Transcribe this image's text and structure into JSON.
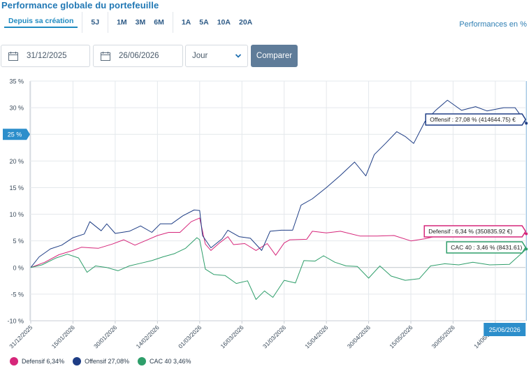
{
  "title": "Performance globale du portefeuille",
  "periods": {
    "groups": [
      [
        {
          "label": "Depuis sa création",
          "active": true
        }
      ],
      [
        {
          "label": "5J",
          "active": false
        }
      ],
      [
        {
          "label": "1M",
          "active": false
        },
        {
          "label": "3M",
          "active": false
        },
        {
          "label": "6M",
          "active": false
        }
      ],
      [
        {
          "label": "1A",
          "active": false
        },
        {
          "label": "5A",
          "active": false
        },
        {
          "label": "10A",
          "active": false
        },
        {
          "label": "20A",
          "active": false
        }
      ]
    ]
  },
  "perf_unit": "Performances en %",
  "controls": {
    "start_date": "31/12/2025",
    "end_date": "26/06/2026",
    "granularity": "Jour",
    "compare_label": "Comparer"
  },
  "chart_data": {
    "type": "line",
    "y_ticks": [
      "35 %",
      "30 %",
      "25 %",
      "20 %",
      "15 %",
      "10 %",
      "5 %",
      "0 %",
      "-5 %",
      "-10 %"
    ],
    "ylim": [
      -10,
      35
    ],
    "x_ticks": [
      "31/12/2025",
      "15/01/2026",
      "30/01/2026",
      "14/02/2026",
      "01/03/2026",
      "16/03/2026",
      "31/03/2026",
      "15/04/2026",
      "30/04/2026",
      "15/05/2026",
      "30/05/2026",
      "14/06/2026"
    ],
    "x_range": [
      "31/12/2025",
      "25/06/2026"
    ],
    "y_axis_marker": "25 %",
    "x_axis_marker": "25/06/2026",
    "crosshair_date": "25/06/2026",
    "series": [
      {
        "name": "Defensif",
        "legend_value": "6,34%",
        "color": "#d6267a",
        "tooltip": "Defensif : 6,34 % (350835.92 €)",
        "points": [
          [
            "2025-12-31",
            0
          ],
          [
            "2026-01-05",
            1
          ],
          [
            "2026-01-10",
            2.4
          ],
          [
            "2026-01-15",
            3.2
          ],
          [
            "2026-01-18",
            3.8
          ],
          [
            "2026-01-24",
            3.6
          ],
          [
            "2026-01-29",
            4.4
          ],
          [
            "2026-02-02",
            5.2
          ],
          [
            "2026-02-06",
            4.2
          ],
          [
            "2026-02-10",
            5.1
          ],
          [
            "2026-02-14",
            6
          ],
          [
            "2026-02-18",
            6.6
          ],
          [
            "2026-02-22",
            6.6
          ],
          [
            "2026-02-26",
            8.6
          ],
          [
            "2026-03-01",
            9.3
          ],
          [
            "2026-03-03",
            4.4
          ],
          [
            "2026-03-05",
            3.2
          ],
          [
            "2026-03-08",
            4.6
          ],
          [
            "2026-03-11",
            5.8
          ],
          [
            "2026-03-13",
            4.3
          ],
          [
            "2026-03-17",
            4.5
          ],
          [
            "2026-03-21",
            3.2
          ],
          [
            "2026-03-25",
            4.5
          ],
          [
            "2026-03-28",
            2.3
          ],
          [
            "2026-03-31",
            4.6
          ],
          [
            "2026-04-02",
            5.2
          ],
          [
            "2026-04-08",
            5.3
          ],
          [
            "2026-04-10",
            6.8
          ],
          [
            "2026-04-15",
            6.5
          ],
          [
            "2026-04-20",
            6.8
          ],
          [
            "2026-04-27",
            5.9
          ],
          [
            "2026-05-03",
            5.9
          ],
          [
            "2026-05-09",
            6
          ],
          [
            "2026-05-15",
            5
          ],
          [
            "2026-05-20",
            5.4
          ],
          [
            "2026-05-25",
            6
          ],
          [
            "2026-06-01",
            6.6
          ],
          [
            "2026-06-06",
            6.4
          ],
          [
            "2026-06-12",
            6.4
          ],
          [
            "2026-06-18",
            6.3
          ],
          [
            "2026-06-25",
            6.34
          ]
        ]
      },
      {
        "name": "Offensif",
        "legend_value": "27,08%",
        "color": "#1e3d85",
        "tooltip": "Offensif : 27,08 % (414644.75) €",
        "points": [
          [
            "2025-12-31",
            0
          ],
          [
            "2026-01-03",
            2
          ],
          [
            "2026-01-07",
            3.5
          ],
          [
            "2026-01-11",
            4.2
          ],
          [
            "2026-01-15",
            5.6
          ],
          [
            "2026-01-19",
            6.3
          ],
          [
            "2026-01-21",
            8.6
          ],
          [
            "2026-01-25",
            6.9
          ],
          [
            "2026-01-27",
            8.2
          ],
          [
            "2026-01-30",
            6.4
          ],
          [
            "2026-02-04",
            6.8
          ],
          [
            "2026-02-08",
            7.8
          ],
          [
            "2026-02-12",
            6.6
          ],
          [
            "2026-02-15",
            8.2
          ],
          [
            "2026-02-19",
            8.2
          ],
          [
            "2026-02-23",
            9.7
          ],
          [
            "2026-02-27",
            10.8
          ],
          [
            "2026-03-01",
            10.7
          ],
          [
            "2026-03-02",
            6
          ],
          [
            "2026-03-05",
            3.7
          ],
          [
            "2026-03-09",
            5.4
          ],
          [
            "2026-03-11",
            7
          ],
          [
            "2026-03-15",
            5.8
          ],
          [
            "2026-03-19",
            5.5
          ],
          [
            "2026-03-23",
            3.2
          ],
          [
            "2026-03-26",
            6.8
          ],
          [
            "2026-03-30",
            7
          ],
          [
            "2026-04-03",
            7
          ],
          [
            "2026-04-06",
            11.7
          ],
          [
            "2026-04-10",
            12.9
          ],
          [
            "2026-04-15",
            15
          ],
          [
            "2026-04-20",
            17.3
          ],
          [
            "2026-04-25",
            19.8
          ],
          [
            "2026-04-29",
            17.2
          ],
          [
            "2026-05-02",
            21.2
          ],
          [
            "2026-05-06",
            23.3
          ],
          [
            "2026-05-10",
            25.5
          ],
          [
            "2026-05-13",
            24.6
          ],
          [
            "2026-05-16",
            23.3
          ],
          [
            "2026-05-20",
            27.4
          ],
          [
            "2026-05-24",
            29.6
          ],
          [
            "2026-05-28",
            31.4
          ],
          [
            "2026-06-02",
            29.5
          ],
          [
            "2026-06-07",
            30.2
          ],
          [
            "2026-06-11",
            29.4
          ],
          [
            "2026-06-17",
            30
          ],
          [
            "2026-06-21",
            30
          ],
          [
            "2026-06-25",
            27.08
          ]
        ]
      },
      {
        "name": "CAC 40",
        "legend_value": "3,46%",
        "color": "#2e9e6a",
        "tooltip": "CAC 40 : 3,46 % (8431.61)",
        "points": [
          [
            "2025-12-31",
            0
          ],
          [
            "2026-01-04",
            0.5
          ],
          [
            "2026-01-09",
            1.8
          ],
          [
            "2026-01-13",
            2.5
          ],
          [
            "2026-01-17",
            1.8
          ],
          [
            "2026-01-20",
            -0.9
          ],
          [
            "2026-01-23",
            0.3
          ],
          [
            "2026-01-27",
            0
          ],
          [
            "2026-01-31",
            -0.6
          ],
          [
            "2026-02-04",
            0.3
          ],
          [
            "2026-02-08",
            0.8
          ],
          [
            "2026-02-12",
            1.3
          ],
          [
            "2026-02-16",
            2
          ],
          [
            "2026-02-20",
            2.6
          ],
          [
            "2026-02-24",
            3.6
          ],
          [
            "2026-02-28",
            5.6
          ],
          [
            "2026-03-01",
            5.2
          ],
          [
            "2026-03-03",
            -0.3
          ],
          [
            "2026-03-06",
            -1.3
          ],
          [
            "2026-03-10",
            -1.5
          ],
          [
            "2026-03-14",
            -3
          ],
          [
            "2026-03-18",
            -2.5
          ],
          [
            "2026-03-21",
            -6
          ],
          [
            "2026-03-24",
            -4.4
          ],
          [
            "2026-03-27",
            -5.6
          ],
          [
            "2026-03-31",
            -2.4
          ],
          [
            "2026-04-04",
            -2.9
          ],
          [
            "2026-04-07",
            1.3
          ],
          [
            "2026-04-11",
            1.2
          ],
          [
            "2026-04-14",
            2.2
          ],
          [
            "2026-04-18",
            1
          ],
          [
            "2026-04-22",
            0.3
          ],
          [
            "2026-04-26",
            0.2
          ],
          [
            "2026-04-30",
            -2
          ],
          [
            "2026-05-04",
            0.3
          ],
          [
            "2026-05-08",
            -1.6
          ],
          [
            "2026-05-13",
            -2.4
          ],
          [
            "2026-05-18",
            -2.1
          ],
          [
            "2026-05-22",
            0.3
          ],
          [
            "2026-05-27",
            0.7
          ],
          [
            "2026-06-01",
            0.5
          ],
          [
            "2026-06-06",
            1
          ],
          [
            "2026-06-12",
            0.5
          ],
          [
            "2026-06-19",
            0.6
          ],
          [
            "2026-06-25",
            3.46
          ]
        ]
      }
    ]
  }
}
